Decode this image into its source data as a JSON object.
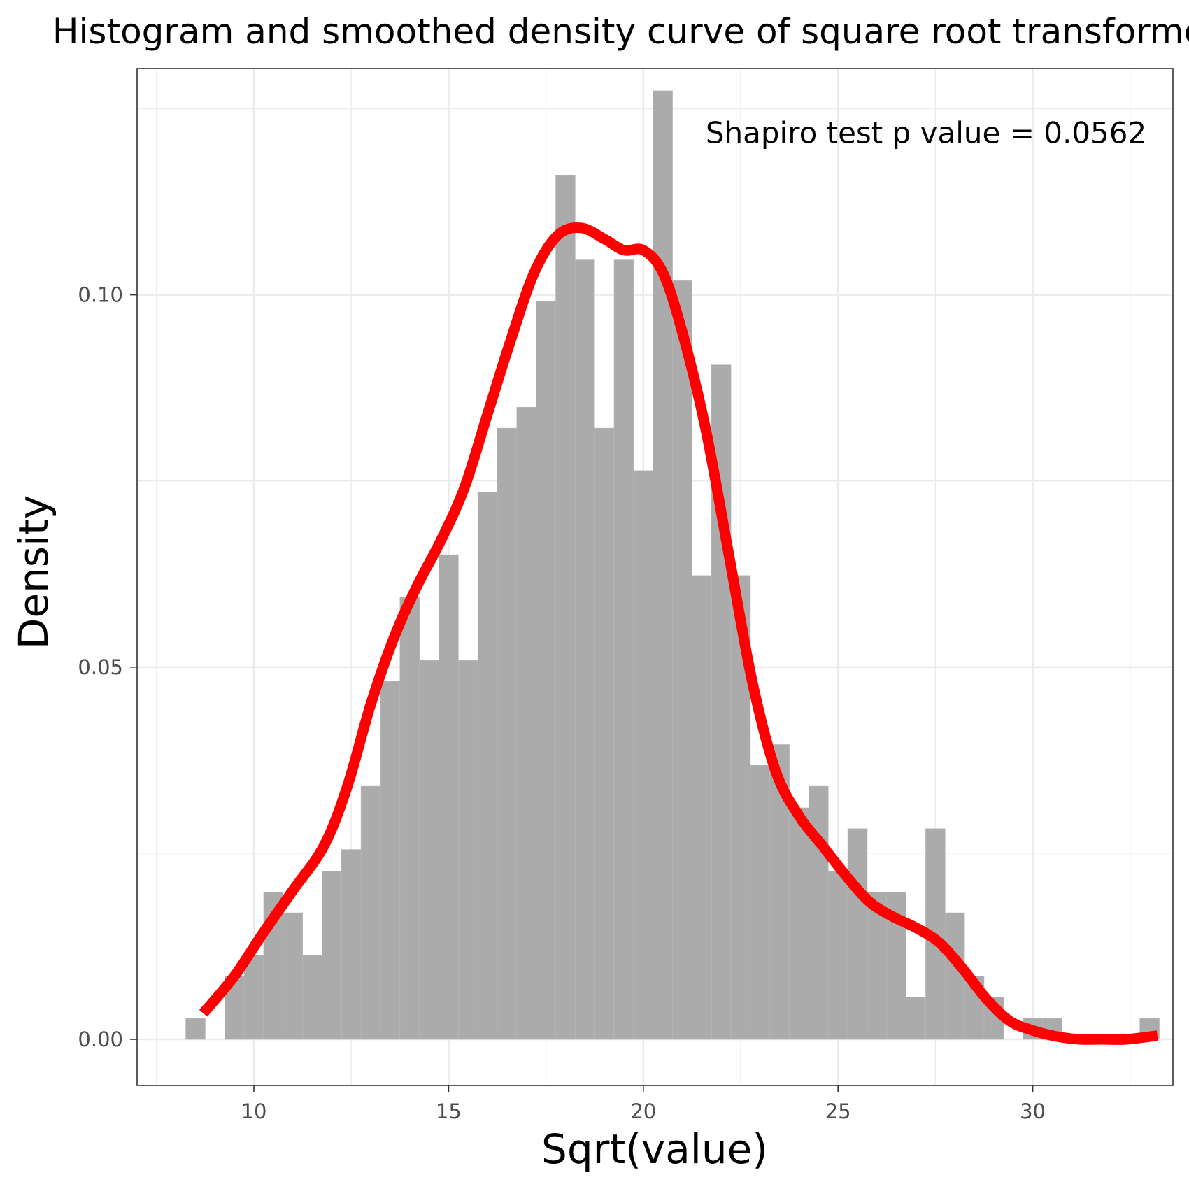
{
  "chart_data": {
    "type": "bar",
    "title": "Histogram and smoothed density curve of square root transformed",
    "xlabel": "Sqrt(value)",
    "ylabel": "Density",
    "xlim": [
      7.0,
      33.6
    ],
    "ylim": [
      -0.0062,
      0.1304
    ],
    "x_ticks": [
      {
        "value": 10,
        "label": "10"
      },
      {
        "value": 15,
        "label": "15"
      },
      {
        "value": 20,
        "label": "20"
      },
      {
        "value": 25,
        "label": "25"
      },
      {
        "value": 30,
        "label": "30"
      }
    ],
    "y_ticks": [
      {
        "value": 0.0,
        "label": "0.00"
      },
      {
        "value": 0.05,
        "label": "0.05"
      },
      {
        "value": 0.1,
        "label": "0.10"
      }
    ],
    "grid": true,
    "bin_width": 0.5,
    "bar_color": "#ababab",
    "curve_color": "#ff0000",
    "histogram": {
      "bin_starts": [
        8.25,
        8.75,
        9.25,
        9.75,
        10.25,
        10.75,
        11.25,
        11.75,
        12.25,
        12.75,
        13.25,
        13.75,
        14.25,
        14.75,
        15.25,
        15.75,
        16.25,
        16.75,
        17.25,
        17.75,
        18.25,
        18.75,
        19.25,
        19.75,
        20.25,
        20.75,
        21.25,
        21.75,
        22.25,
        22.75,
        23.25,
        23.75,
        24.25,
        24.75,
        25.25,
        25.75,
        26.25,
        26.75,
        27.25,
        27.75,
        28.25,
        28.75,
        29.25,
        29.75,
        30.25,
        30.75,
        31.25,
        31.75,
        32.25,
        32.75
      ],
      "densities": [
        0.0028,
        0.0,
        0.0085,
        0.0113,
        0.0198,
        0.017,
        0.0113,
        0.0226,
        0.0255,
        0.034,
        0.0481,
        0.0594,
        0.0509,
        0.0651,
        0.0509,
        0.0735,
        0.0821,
        0.0849,
        0.0991,
        0.1161,
        0.1047,
        0.0821,
        0.1047,
        0.0764,
        0.1274,
        0.1019,
        0.0623,
        0.0906,
        0.0623,
        0.0368,
        0.0396,
        0.0311,
        0.034,
        0.0226,
        0.0283,
        0.0198,
        0.0198,
        0.0057,
        0.0283,
        0.017,
        0.0085,
        0.0057,
        0.0,
        0.0028,
        0.0028,
        0.0,
        0.0,
        0.0,
        0.0,
        0.0028
      ]
    },
    "density_curve": {
      "x": [
        8.7,
        9.5,
        10.2,
        11.0,
        11.8,
        12.4,
        13.0,
        13.6,
        14.2,
        14.8,
        15.4,
        16.0,
        16.6,
        17.2,
        17.8,
        18.4,
        19.0,
        19.5,
        20.0,
        20.5,
        21.0,
        21.6,
        22.2,
        22.8,
        23.4,
        24.0,
        24.6,
        25.2,
        25.8,
        26.4,
        27.0,
        27.6,
        28.2,
        28.8,
        29.4,
        30.0,
        30.6,
        31.2,
        31.8,
        32.4,
        33.2
      ],
      "y": [
        0.0035,
        0.0085,
        0.014,
        0.02,
        0.026,
        0.034,
        0.045,
        0.054,
        0.061,
        0.067,
        0.074,
        0.084,
        0.094,
        0.103,
        0.108,
        0.109,
        0.1075,
        0.106,
        0.106,
        0.103,
        0.095,
        0.082,
        0.065,
        0.048,
        0.036,
        0.03,
        0.026,
        0.022,
        0.0185,
        0.0165,
        0.015,
        0.013,
        0.0095,
        0.0055,
        0.0025,
        0.0012,
        0.0004,
        0.0,
        0.0,
        0.0,
        0.0005
      ]
    },
    "annotation": {
      "text": "Shapiro test p value = 0.0562",
      "x": 21.6,
      "y": 0.1204
    }
  }
}
